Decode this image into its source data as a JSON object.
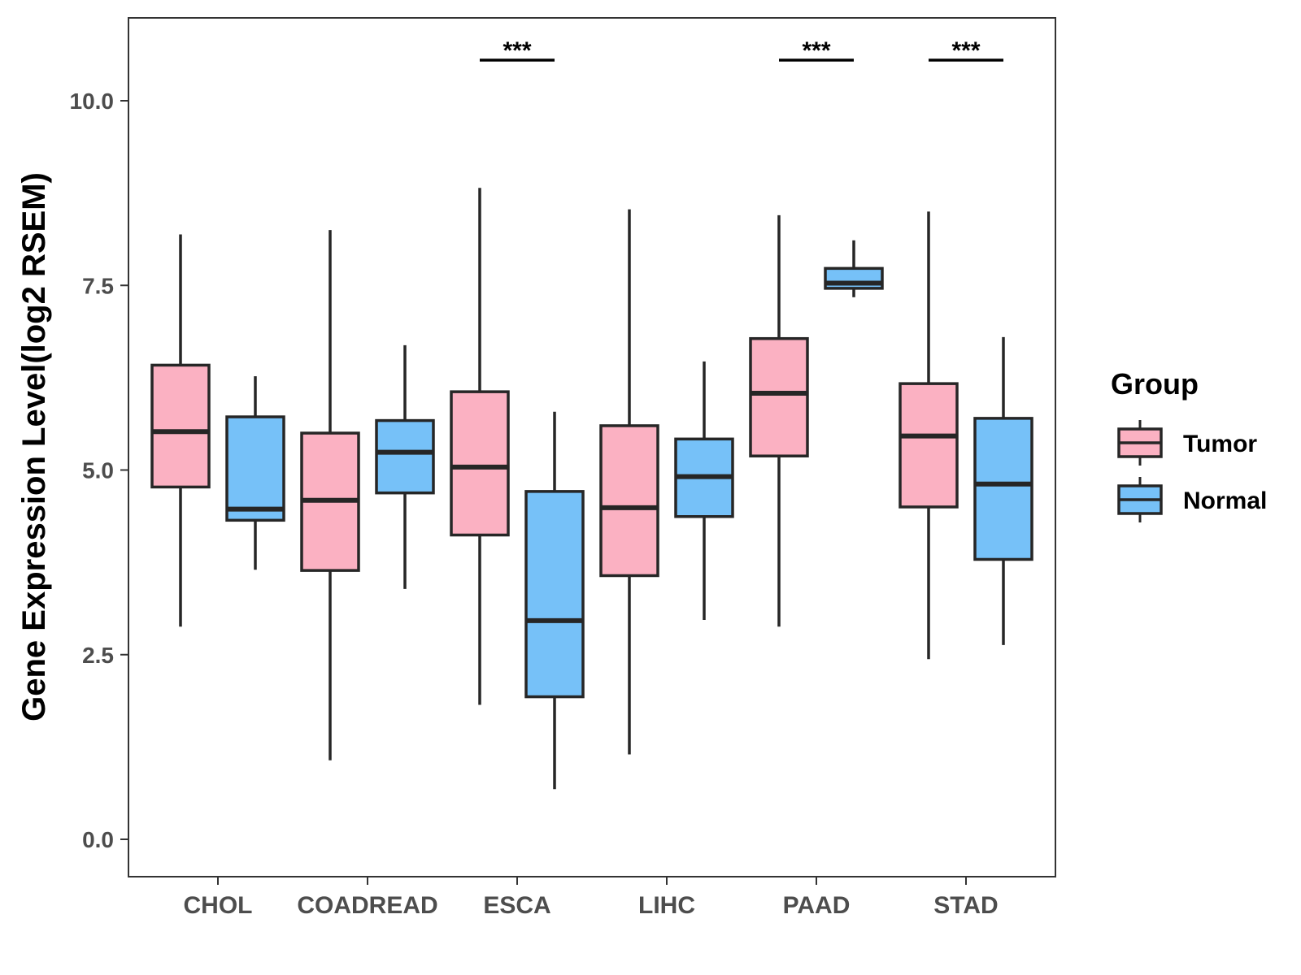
{
  "chart_data": {
    "type": "box",
    "title": "",
    "xlabel": "",
    "ylabel": "Gene Expression Level(log2 RSEM)",
    "ylim": [
      -0.5,
      11.1
    ],
    "yticks": [
      0.0,
      2.5,
      5.0,
      7.5,
      10.0
    ],
    "ytick_labels": [
      "0.0",
      "2.5",
      "5.0",
      "7.5",
      "10.0"
    ],
    "grid": false,
    "categories": [
      "CHOL",
      "COADREAD",
      "ESCA",
      "LIHC",
      "PAAD",
      "STAD"
    ],
    "legend": {
      "title": "Group",
      "position": "right",
      "entries": [
        {
          "name": "Tumor",
          "color": "#fbb1c2"
        },
        {
          "name": "Normal",
          "color": "#76c1f8"
        }
      ]
    },
    "series": [
      {
        "name": "Tumor",
        "color": "#fbb1c2",
        "boxes": [
          {
            "whisker_low": 2.88,
            "q1": 4.77,
            "median": 5.52,
            "q3": 6.42,
            "whisker_high": 8.19
          },
          {
            "whisker_low": 1.07,
            "q1": 3.64,
            "median": 4.59,
            "q3": 5.5,
            "whisker_high": 8.25
          },
          {
            "whisker_low": 1.82,
            "q1": 4.12,
            "median": 5.04,
            "q3": 6.06,
            "whisker_high": 8.82
          },
          {
            "whisker_low": 1.15,
            "q1": 3.57,
            "median": 4.49,
            "q3": 5.6,
            "whisker_high": 8.53
          },
          {
            "whisker_low": 2.88,
            "q1": 5.19,
            "median": 6.04,
            "q3": 6.78,
            "whisker_high": 8.45
          },
          {
            "whisker_low": 2.44,
            "q1": 4.5,
            "median": 5.46,
            "q3": 6.17,
            "whisker_high": 8.5
          }
        ]
      },
      {
        "name": "Normal",
        "color": "#76c1f8",
        "boxes": [
          {
            "whisker_low": 3.65,
            "q1": 4.32,
            "median": 4.47,
            "q3": 5.72,
            "whisker_high": 6.27
          },
          {
            "whisker_low": 3.39,
            "q1": 4.69,
            "median": 5.24,
            "q3": 5.67,
            "whisker_high": 6.69
          },
          {
            "whisker_low": 0.68,
            "q1": 1.93,
            "median": 2.96,
            "q3": 4.71,
            "whisker_high": 5.79
          },
          {
            "whisker_low": 2.97,
            "q1": 4.37,
            "median": 4.91,
            "q3": 5.42,
            "whisker_high": 6.47
          },
          {
            "whisker_low": 7.34,
            "q1": 7.46,
            "median": 7.53,
            "q3": 7.73,
            "whisker_high": 8.11
          },
          {
            "whisker_low": 2.63,
            "q1": 3.79,
            "median": 4.81,
            "q3": 5.7,
            "whisker_high": 6.8
          }
        ]
      }
    ],
    "annotations": [
      {
        "category": "ESCA",
        "text": "***",
        "y": 10.55
      },
      {
        "category": "PAAD",
        "text": "***",
        "y": 10.55
      },
      {
        "category": "STAD",
        "text": "***",
        "y": 10.55
      }
    ]
  }
}
